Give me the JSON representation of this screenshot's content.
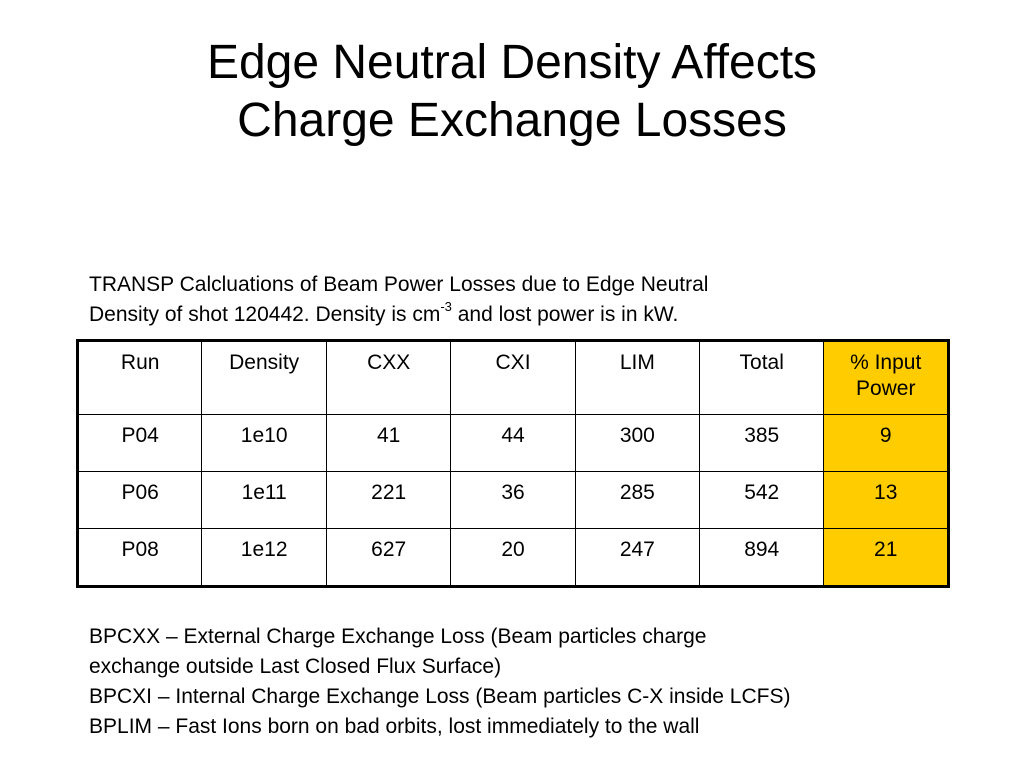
{
  "title": {
    "line1": "Edge Neutral Density Affects",
    "line2": "Charge Exchange Losses"
  },
  "intro": {
    "line1": "TRANSP Calcluations of Beam Power Losses due to Edge Neutral",
    "line2_pre": "Density of shot 120442.  Density is cm",
    "line2_sup": "-3",
    "line2_post": " and lost power is in kW."
  },
  "table": {
    "headers": [
      "Run",
      "Density",
      "CXX",
      "CXI",
      "LIM",
      "Total",
      "% Input",
      "Power"
    ],
    "rows": [
      [
        "P04",
        "1e10",
        "41",
        "44",
        "300",
        "385",
        "9"
      ],
      [
        "P06",
        "1e11",
        "221",
        "36",
        "285",
        "542",
        "13"
      ],
      [
        "P08",
        "1e12",
        "627",
        "20",
        "247",
        "894",
        "21"
      ]
    ],
    "highlight_color": "#ffcc00"
  },
  "definitions": {
    "line1": "BPCXX – External Charge Exchange Loss (Beam particles charge",
    "line2": "exchange outside Last Closed Flux Surface)",
    "line3": "BPCXI – Internal Charge Exchange Loss (Beam particles C-X inside LCFS)",
    "line4": "BPLIM – Fast Ions born on bad orbits, lost immediately to the wall"
  }
}
